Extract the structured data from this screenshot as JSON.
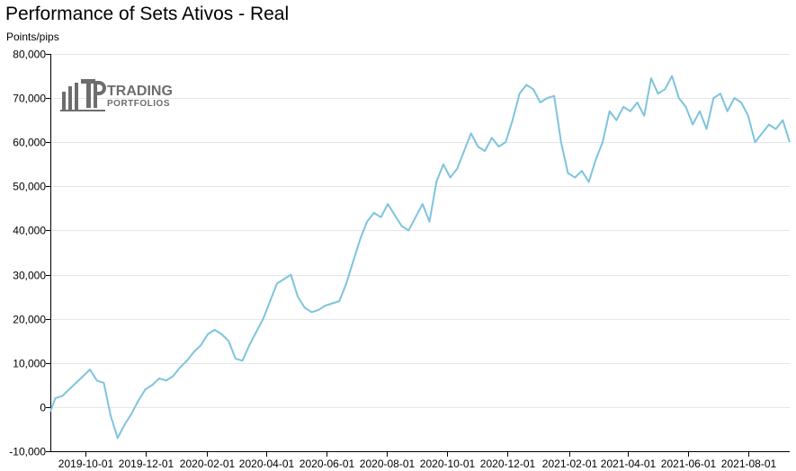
{
  "chart_data": {
    "type": "line",
    "title": "Performance of Sets Ativos - Real",
    "ylabel": "Points/pips",
    "xlabel": "",
    "ylim": [
      -10000,
      80000
    ],
    "y_ticks": [
      -10000,
      0,
      10000,
      20000,
      30000,
      40000,
      50000,
      60000,
      70000,
      80000
    ],
    "y_tick_labels": [
      "-10,000",
      "0",
      "10,000",
      "20,000",
      "30,000",
      "40,000",
      "50,000",
      "60,000",
      "70,000",
      "80,000"
    ],
    "x_range": [
      "2019-08-27",
      "2021-09-12"
    ],
    "x_ticks": [
      "2019-10-01",
      "2019-12-01",
      "2020-02-01",
      "2020-04-01",
      "2020-06-01",
      "2020-08-01",
      "2020-10-01",
      "2020-12-01",
      "2021-02-01",
      "2021-04-01",
      "2021-06-01",
      "2021-08-01"
    ],
    "grid": "horizontal",
    "line_color": "#7ec4dd",
    "series": [
      {
        "name": "",
        "x": [
          "2019-08-27",
          "2019-09-01",
          "2019-09-08",
          "2019-09-15",
          "2019-09-22",
          "2019-09-29",
          "2019-10-06",
          "2019-10-13",
          "2019-10-20",
          "2019-10-27",
          "2019-11-03",
          "2019-11-10",
          "2019-11-17",
          "2019-11-24",
          "2019-12-01",
          "2019-12-08",
          "2019-12-15",
          "2019-12-22",
          "2019-12-29",
          "2020-01-05",
          "2020-01-12",
          "2020-01-19",
          "2020-01-26",
          "2020-02-02",
          "2020-02-09",
          "2020-02-16",
          "2020-02-23",
          "2020-03-01",
          "2020-03-08",
          "2020-03-15",
          "2020-03-22",
          "2020-03-29",
          "2020-04-05",
          "2020-04-12",
          "2020-04-19",
          "2020-04-26",
          "2020-05-03",
          "2020-05-10",
          "2020-05-17",
          "2020-05-24",
          "2020-05-31",
          "2020-06-07",
          "2020-06-14",
          "2020-06-21",
          "2020-06-28",
          "2020-07-05",
          "2020-07-12",
          "2020-07-19",
          "2020-07-26",
          "2020-08-02",
          "2020-08-09",
          "2020-08-16",
          "2020-08-23",
          "2020-08-30",
          "2020-09-06",
          "2020-09-13",
          "2020-09-20",
          "2020-09-27",
          "2020-10-04",
          "2020-10-11",
          "2020-10-18",
          "2020-10-25",
          "2020-11-01",
          "2020-11-08",
          "2020-11-15",
          "2020-11-22",
          "2020-11-29",
          "2020-12-06",
          "2020-12-13",
          "2020-12-20",
          "2020-12-27",
          "2021-01-03",
          "2021-01-10",
          "2021-01-17",
          "2021-01-24",
          "2021-01-31",
          "2021-02-07",
          "2021-02-14",
          "2021-02-21",
          "2021-02-28",
          "2021-03-07",
          "2021-03-14",
          "2021-03-21",
          "2021-03-28",
          "2021-04-04",
          "2021-04-11",
          "2021-04-18",
          "2021-04-25",
          "2021-05-02",
          "2021-05-09",
          "2021-05-16",
          "2021-05-23",
          "2021-05-30",
          "2021-06-06",
          "2021-06-13",
          "2021-06-20",
          "2021-06-27",
          "2021-07-04",
          "2021-07-11",
          "2021-07-18",
          "2021-07-25",
          "2021-08-01",
          "2021-08-08",
          "2021-08-15",
          "2021-08-22",
          "2021-08-29",
          "2021-09-05",
          "2021-09-12"
        ],
        "y": [
          -1000,
          2000,
          2500,
          4000,
          5500,
          7000,
          8500,
          6000,
          5500,
          -2000,
          -7000,
          -4000,
          -1500,
          1500,
          4000,
          5000,
          6500,
          6000,
          7000,
          9000,
          10500,
          12500,
          14000,
          16500,
          17500,
          16500,
          15000,
          11000,
          10500,
          14000,
          17000,
          20000,
          24000,
          28000,
          29000,
          30000,
          25000,
          22500,
          21500,
          22000,
          23000,
          23500,
          24000,
          28000,
          33000,
          38000,
          42000,
          44000,
          43000,
          46000,
          43500,
          41000,
          40000,
          43000,
          46000,
          42000,
          51000,
          55000,
          52000,
          54000,
          58000,
          62000,
          59000,
          58000,
          61000,
          59000,
          60000,
          65000,
          71000,
          73000,
          72000,
          69000,
          70000,
          70500,
          60000,
          53000,
          52000,
          53500,
          51000,
          56000,
          60000,
          67000,
          65000,
          68000,
          67000,
          69000,
          66000,
          74500,
          71000,
          72000,
          75000,
          70000,
          68000,
          64000,
          67000,
          63000,
          70000,
          71000,
          67000,
          70000,
          69000,
          66000,
          60000,
          62000,
          64000,
          63000,
          65000,
          60000
        ]
      }
    ]
  },
  "logo": {
    "name": "TRADING PORTFOLIOS",
    "line1": "TRADING",
    "line2": "PORTFOLIOS"
  }
}
